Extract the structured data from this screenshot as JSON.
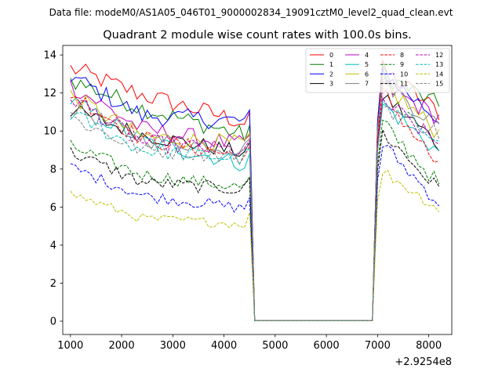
{
  "chart_data": {
    "type": "line",
    "suptitle": "Data file: modeM0/AS1A05_046T01_9000002834_19091cztM0_level2_quad_clean.evt",
    "title": "Quadrant 2 module wise count rates with 100.0s bins.",
    "xlabel": "",
    "ylabel": "",
    "x_offset_label": "+2.9254e8",
    "xlim": [
      850,
      8450
    ],
    "ylim": [
      -0.7,
      14.5
    ],
    "xticks": [
      1000,
      2000,
      3000,
      4000,
      5000,
      6000,
      7000,
      8000
    ],
    "yticks": [
      0,
      2,
      4,
      6,
      8,
      10,
      12,
      14
    ],
    "legend_location": "top-right",
    "x_start": 1000,
    "x_step": 100,
    "num_points": 73,
    "gap": {
      "drop_start": 4500,
      "low_from": 4600,
      "low_to": 6900,
      "rise_end": 7100,
      "low_value": 0.03
    },
    "series": [
      {
        "name": "0",
        "color": "#ff0000",
        "dash": "solid",
        "start": 13.3,
        "mid": 11.9,
        "end_gap": 10.4,
        "post_peak": 13.2,
        "final": 11.0
      },
      {
        "name": "1",
        "color": "#008000",
        "dash": "solid",
        "start": 12.7,
        "mid": 11.2,
        "end_gap": 9.7,
        "post_peak": 13.0,
        "final": 11.3
      },
      {
        "name": "2",
        "color": "#0000ff",
        "dash": "solid",
        "start": 12.9,
        "mid": 10.8,
        "end_gap": 10.5,
        "post_peak": 13.1,
        "final": 10.6
      },
      {
        "name": "3",
        "color": "#000000",
        "dash": "solid",
        "start": 11.1,
        "mid": 9.8,
        "end_gap": 8.8,
        "post_peak": 11.9,
        "final": 9.3
      },
      {
        "name": "4",
        "color": "#bf00bf",
        "dash": "solid",
        "start": 12.4,
        "mid": 10.1,
        "end_gap": 9.2,
        "post_peak": 12.4,
        "final": 10.7
      },
      {
        "name": "5",
        "color": "#00bfbf",
        "dash": "solid",
        "start": 11.6,
        "mid": 9.5,
        "end_gap": 8.2,
        "post_peak": 11.4,
        "final": 8.9
      },
      {
        "name": "6",
        "color": "#bfbf00",
        "dash": "solid",
        "start": 11.9,
        "mid": 9.7,
        "end_gap": 9.3,
        "post_peak": 12.5,
        "final": 9.9
      },
      {
        "name": "7",
        "color": "#808080",
        "dash": "solid",
        "start": 11.3,
        "mid": 9.6,
        "end_gap": 9.0,
        "post_peak": 12.7,
        "final": 10.2
      },
      {
        "name": "8",
        "color": "#ff0000",
        "dash": "dashed",
        "start": 12.0,
        "mid": 9.6,
        "end_gap": 8.6,
        "post_peak": 12.0,
        "final": 8.1
      },
      {
        "name": "9",
        "color": "#008000",
        "dash": "dashed",
        "start": 9.2,
        "mid": 7.7,
        "end_gap": 7.0,
        "post_peak": 10.4,
        "final": 7.2
      },
      {
        "name": "10",
        "color": "#0000ff",
        "dash": "dashed",
        "start": 8.1,
        "mid": 6.6,
        "end_gap": 5.9,
        "post_peak": 9.3,
        "final": 6.2
      },
      {
        "name": "11",
        "color": "#000000",
        "dash": "dashed",
        "start": 8.9,
        "mid": 7.3,
        "end_gap": 6.9,
        "post_peak": 9.9,
        "final": 6.9
      },
      {
        "name": "12",
        "color": "#bf00bf",
        "dash": "dashed",
        "start": 11.8,
        "mid": 9.4,
        "end_gap": 8.9,
        "post_peak": 11.6,
        "final": 9.3
      },
      {
        "name": "13",
        "color": "#00bfbf",
        "dash": "dashed",
        "start": 10.9,
        "mid": 9.0,
        "end_gap": 8.5,
        "post_peak": 11.2,
        "final": 9.8
      },
      {
        "name": "14",
        "color": "#bfbf00",
        "dash": "dashed",
        "start": 6.7,
        "mid": 5.4,
        "end_gap": 5.1,
        "post_peak": 7.9,
        "final": 5.9
      },
      {
        "name": "15",
        "color": "#808080",
        "dash": "dashed",
        "start": 10.7,
        "mid": 9.0,
        "end_gap": 8.7,
        "post_peak": 11.3,
        "final": 9.9
      }
    ]
  }
}
